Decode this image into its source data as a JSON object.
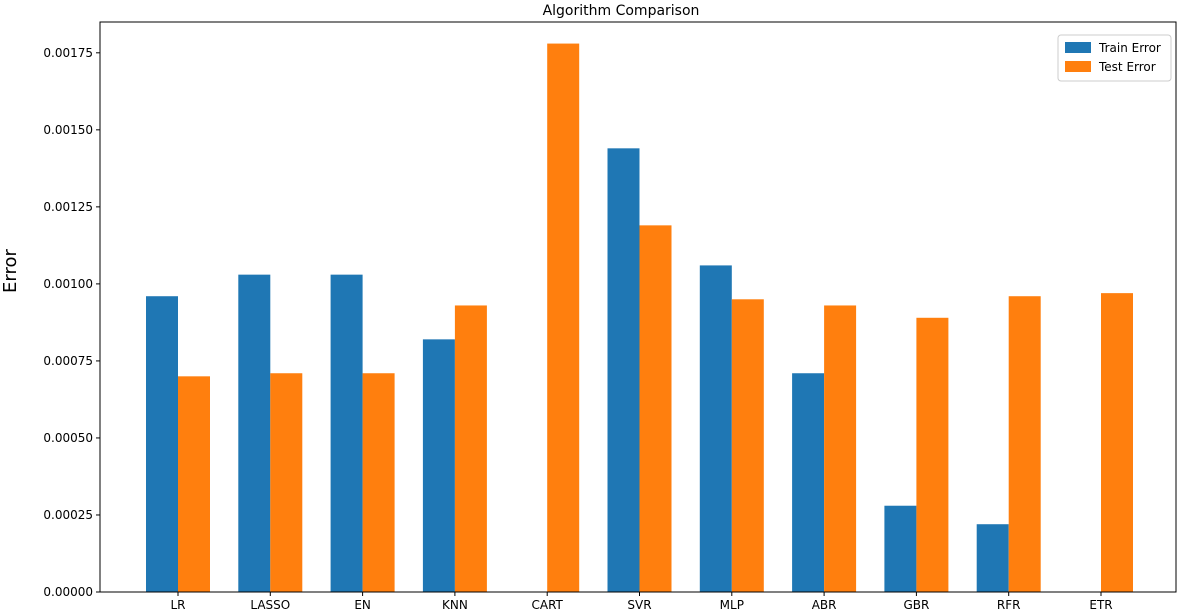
{
  "chart_data": {
    "type": "bar",
    "title": "Algorithm Comparison",
    "xlabel": "",
    "ylabel": "Error",
    "ylim": [
      0,
      0.00185
    ],
    "yticks": [
      "0.00000",
      "0.00025",
      "0.00050",
      "0.00075",
      "0.00100",
      "0.00125",
      "0.00150",
      "0.00175"
    ],
    "ytick_values": [
      0,
      0.00025,
      0.0005,
      0.00075,
      0.001,
      0.00125,
      0.0015,
      0.00175
    ],
    "categories": [
      "LR",
      "LASSO",
      "EN",
      "KNN",
      "CART",
      "SVR",
      "MLP",
      "ABR",
      "GBR",
      "RFR",
      "ETR"
    ],
    "series": [
      {
        "name": "Train Error",
        "color": "#1f77b4",
        "values": [
          0.00096,
          0.00103,
          0.00103,
          0.00082,
          0.0,
          0.00144,
          0.00106,
          0.00071,
          0.00028,
          0.00022,
          0.0
        ]
      },
      {
        "name": "Test Error",
        "color": "#ff7f0e",
        "values": [
          0.0007,
          0.00071,
          0.00071,
          0.00093,
          0.00178,
          0.00119,
          0.00095,
          0.00093,
          0.00089,
          0.00096,
          0.00097
        ]
      }
    ],
    "legend_position": "top-right",
    "grid": false
  }
}
